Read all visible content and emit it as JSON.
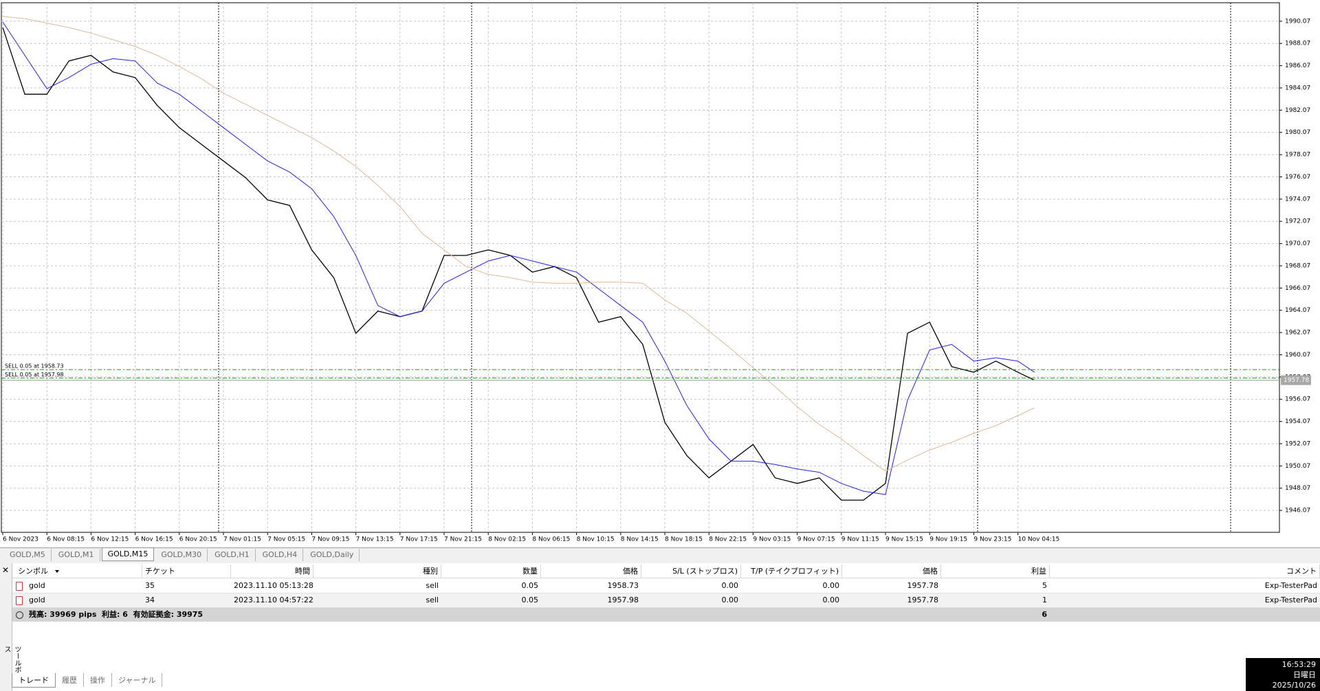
{
  "chart_data": {
    "type": "line",
    "x": [
      0,
      2,
      4,
      6,
      8,
      10,
      12,
      14,
      16,
      18,
      20,
      22,
      24,
      26,
      28,
      30,
      32,
      34,
      36,
      38,
      40,
      42,
      44,
      46,
      48,
      50,
      52,
      54,
      56,
      58,
      60,
      62,
      64,
      66,
      68,
      70,
      72,
      74,
      76,
      78,
      80,
      82,
      84,
      86,
      88,
      90,
      92,
      93.5
    ],
    "series": [
      {
        "color": "#000000",
        "values": [
          1989.5,
          1983.5,
          1983.5,
          1986.5,
          1987.0,
          1985.5,
          1985.0,
          1982.5,
          1980.5,
          1979.0,
          1977.5,
          1976.0,
          1974.0,
          1973.5,
          1969.5,
          1967.0,
          1962.0,
          1964.0,
          1963.5,
          1964.0,
          1969.0,
          1969.0,
          1969.5,
          1969.0,
          1967.5,
          1968.0,
          1967.0,
          1963.0,
          1963.5,
          1961.0,
          1954.0,
          1951.0,
          1949.0,
          1950.5,
          1952.0,
          1949.0,
          1948.5,
          1949.0,
          1947.0,
          1947.0,
          1948.5,
          1962.0,
          1963.0,
          1959.0,
          1958.5,
          1959.5,
          1958.5,
          1957.78
        ]
      },
      {
        "color": "#2020e8",
        "values": [
          1990,
          1987,
          1984,
          1985,
          1986.2,
          1986.7,
          1986.5,
          1984.5,
          1983.5,
          1982,
          1980.5,
          1979,
          1977.5,
          1976.5,
          1975,
          1972.5,
          1969,
          1964.5,
          1963.5,
          1964,
          1966.5,
          1967.5,
          1968.5,
          1969,
          1968.5,
          1968,
          1967.5,
          1966,
          1964.5,
          1963,
          1959.5,
          1955.5,
          1952.5,
          1950.5,
          1950.5,
          1950.2,
          1949.8,
          1949.5,
          1948.5,
          1947.8,
          1947.5,
          1956,
          1960.5,
          1961,
          1959.5,
          1959.8,
          1959.5,
          1958.5
        ]
      },
      {
        "color": "#e3b896",
        "values": [
          1990.5,
          1990.3,
          1989.9,
          1989.5,
          1989.0,
          1988.4,
          1987.8,
          1987.0,
          1986.0,
          1984.9,
          1983.6,
          1982.6,
          1981.6,
          1980.6,
          1979.6,
          1978.4,
          1977.0,
          1975.3,
          1973.4,
          1971.0,
          1969.5,
          1968.0,
          1967.3,
          1967.0,
          1966.6,
          1966.5,
          1966.5,
          1966.6,
          1966.6,
          1966.5,
          1965.0,
          1963.8,
          1962.2,
          1960.6,
          1958.9,
          1957.2,
          1955.4,
          1953.8,
          1952.5,
          1951.0,
          1949.6,
          1950.6,
          1951.5,
          1952.2,
          1953.0,
          1953.7,
          1954.6,
          1955.3
        ]
      }
    ],
    "xlim": [
      0,
      115.7
    ],
    "xticks": [
      {
        "value": 0,
        "label": "6 Nov 2023"
      },
      {
        "value": 4,
        "label": "6 Nov 08:15"
      },
      {
        "value": 8,
        "label": "6 Nov 12:15"
      },
      {
        "value": 12,
        "label": "6 Nov 16:15"
      },
      {
        "value": 16,
        "label": "6 Nov 20:15"
      },
      {
        "value": 20,
        "label": "7 Nov 01:15"
      },
      {
        "value": 24,
        "label": "7 Nov 05:15"
      },
      {
        "value": 28,
        "label": "7 Nov 09:15"
      },
      {
        "value": 32,
        "label": "7 Nov 13:15"
      },
      {
        "value": 36,
        "label": "7 Nov 17:15"
      },
      {
        "value": 40,
        "label": "7 Nov 21:15"
      },
      {
        "value": 44,
        "label": "8 Nov 02:15"
      },
      {
        "value": 48,
        "label": "8 Nov 06:15"
      },
      {
        "value": 52,
        "label": "8 Nov 10:15"
      },
      {
        "value": 56,
        "label": "8 Nov 14:15"
      },
      {
        "value": 60,
        "label": "8 Nov 18:15"
      },
      {
        "value": 64,
        "label": "8 Nov 22:15"
      },
      {
        "value": 68,
        "label": "9 Nov 03:15"
      },
      {
        "value": 72,
        "label": "9 Nov 07:15"
      },
      {
        "value": 76,
        "label": "9 Nov 11:15"
      },
      {
        "value": 80,
        "label": "9 Nov 15:15"
      },
      {
        "value": 84,
        "label": "9 Nov 19:15"
      },
      {
        "value": 88,
        "label": "9 Nov 23:15"
      },
      {
        "value": 92,
        "label": "10 Nov 04:15"
      }
    ],
    "ylim": [
      1944.1,
      1991.73
    ],
    "yticks": [
      1946.07,
      1948.07,
      1950.07,
      1952.07,
      1954.07,
      1956.07,
      1958.07,
      1960.07,
      1962.07,
      1964.07,
      1966.07,
      1968.07,
      1970.07,
      1972.07,
      1974.07,
      1976.07,
      1978.07,
      1980.07,
      1982.07,
      1984.07,
      1986.07,
      1988.07,
      1990.07
    ],
    "grid": true,
    "orders": [
      {
        "label": "SELL 0.05 at 1958.73",
        "value": 1958.73,
        "color": "#1a9a1a"
      },
      {
        "label": "SELL 0.05 at 1957.98",
        "value": 1957.98,
        "color": "#1a9a1a"
      }
    ],
    "current_price": 1957.78
  },
  "timeframe_tabs": [
    "GOLD,M5",
    "GOLD,M1",
    "GOLD,M15",
    "GOLD,M30",
    "GOLD,H1",
    "GOLD,H4",
    "GOLD,Daily"
  ],
  "active_tab": 2,
  "toolbox": {
    "title": "ツールボックス",
    "table": {
      "columns": [
        "シンボル",
        "チケット",
        "時間",
        "種別",
        "数量",
        "価格",
        "S/L (ストップロス)",
        "T/P (テイクプロフィット)",
        "価格",
        "利益",
        "コメント"
      ],
      "rows": [
        [
          "gold",
          "35",
          "2023.11.10 05:13:28",
          "sell",
          "0.05",
          "1958.73",
          "0.00",
          "0.00",
          "1957.78",
          "5",
          "Exp-TesterPad"
        ],
        [
          "gold",
          "34",
          "2023.11.10 04:57:22",
          "sell",
          "0.05",
          "1957.98",
          "0.00",
          "0.00",
          "1957.78",
          "1",
          "Exp-TesterPad"
        ]
      ],
      "summary": {
        "text": "残高: 39969 pips  利益: 6  有効証拠金: 39975",
        "total": "6"
      }
    },
    "tabs": [
      "トレード",
      "履歴",
      "操作",
      "ジャーナル"
    ]
  },
  "clock": {
    "time": "16:53:29",
    "weekday": "日曜日",
    "date": "2025/10/26"
  }
}
